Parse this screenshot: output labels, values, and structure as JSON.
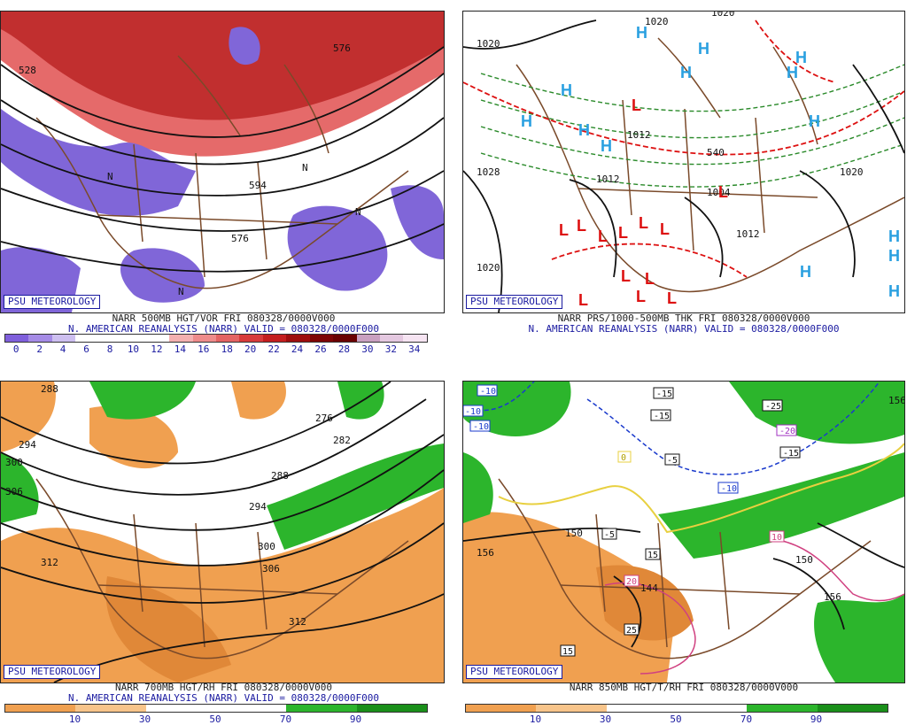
{
  "panels": {
    "tl": {
      "credit": "PSU METEOROLOGY",
      "caption1": "NARR 500MB HGT/VOR FRI 080328/0000V000",
      "caption2": "N. AMERICAN REANALYSIS (NARR) VALID = 080328/0000F000",
      "scale_labels": [
        "0",
        "2",
        "4",
        "6",
        "8",
        "10",
        "12",
        "14",
        "16",
        "18",
        "20",
        "22",
        "24",
        "26",
        "28",
        "30",
        "32",
        "34"
      ],
      "scale_colors": [
        "#7f5fdc",
        "#a58be6",
        "#cdbff0",
        "#ffffff",
        "#ffffff",
        "#ffffff",
        "#ffffff",
        "#f4b0b0",
        "#ee8b8b",
        "#e46363",
        "#d83b3b",
        "#c41e1e",
        "#9e0d0d",
        "#7e0505",
        "#6a0202",
        "#c9a0c0",
        "#e4c8e0",
        "#f6e4f2"
      ],
      "contour_labels": [
        "528",
        "576",
        "576",
        "594",
        "N",
        "N",
        "N",
        "N"
      ]
    },
    "tr": {
      "credit": "PSU METEOROLOGY",
      "caption1": "NARR PRS/1000-500MB THK FRI 080328/0000V000",
      "caption2": "N. AMERICAN REANALYSIS (NARR) VALID = 080328/0000F000",
      "isobar_labels": [
        "1020",
        "1020",
        "1020",
        "1028",
        "1020",
        "1012",
        "1012",
        "1004",
        "1012",
        "1020",
        "540"
      ],
      "highs": [
        "H",
        "H",
        "H",
        "H",
        "H",
        "H",
        "H",
        "H",
        "H",
        "H",
        "H",
        "H",
        "H",
        "H"
      ],
      "lows": [
        "L",
        "L",
        "L",
        "L",
        "L",
        "L",
        "L",
        "L",
        "L",
        "L",
        "L",
        "L",
        "L"
      ]
    },
    "bl": {
      "credit": "PSU METEOROLOGY",
      "caption1": "NARR 700MB HGT/RH FRI 080328/0000V000",
      "caption2": "N. AMERICAN REANALYSIS (NARR) VALID = 080328/0000F000",
      "scale_labels": [
        "10",
        "30",
        "50",
        "70",
        "90"
      ],
      "contour_labels": [
        "288",
        "294",
        "300",
        "306",
        "276",
        "282",
        "288",
        "294",
        "300",
        "306",
        "312",
        "312"
      ]
    },
    "br": {
      "credit": "PSU METEOROLOGY",
      "caption1": "NARR 850MB HGT/T/RH FRI 080328/0000V000",
      "scale_labels": [
        "10",
        "30",
        "50",
        "70",
        "90"
      ],
      "contour_labels": [
        "156",
        "150",
        "144",
        "156",
        "150",
        "156"
      ],
      "temp_labels": [
        "-10",
        "-10",
        "-10",
        "-15",
        "-15",
        "-25",
        "-20",
        "-15",
        "-5",
        "-5",
        "-10",
        "15",
        "20",
        "25",
        "15",
        "10",
        "0"
      ]
    }
  },
  "colors": {
    "rh_brown": "#f0a050",
    "rh_green": "#2cb52c",
    "vor_red": "#dd3030",
    "vor_purple": "#8066d8",
    "map_border": "#7a4a2a",
    "contour": "#111111"
  }
}
